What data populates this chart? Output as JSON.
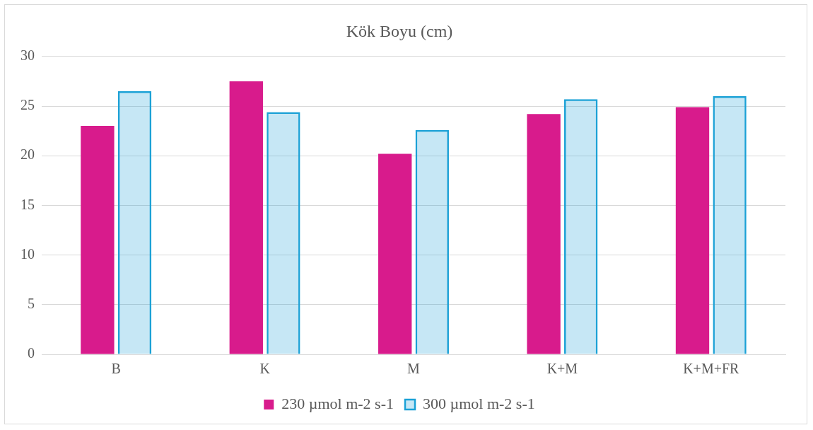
{
  "chart_data": {
    "type": "bar",
    "title": "Kök Boyu (cm)",
    "categories": [
      "B",
      "K",
      "M",
      "K+M",
      "K+M+FR"
    ],
    "series": [
      {
        "name": "230 µmol m-2 s-1",
        "color": "#d81b8c",
        "values": [
          23.0,
          27.5,
          20.2,
          24.2,
          24.9
        ]
      },
      {
        "name": "300 µmol m-2 s-1",
        "color": "#1ba1d6",
        "values": [
          26.5,
          24.4,
          22.6,
          25.7,
          26.0
        ]
      }
    ],
    "ylim": [
      0,
      30
    ],
    "yticks": [
      0,
      5,
      10,
      15,
      20,
      25,
      30
    ],
    "grid": "y",
    "legend": "bottom"
  }
}
